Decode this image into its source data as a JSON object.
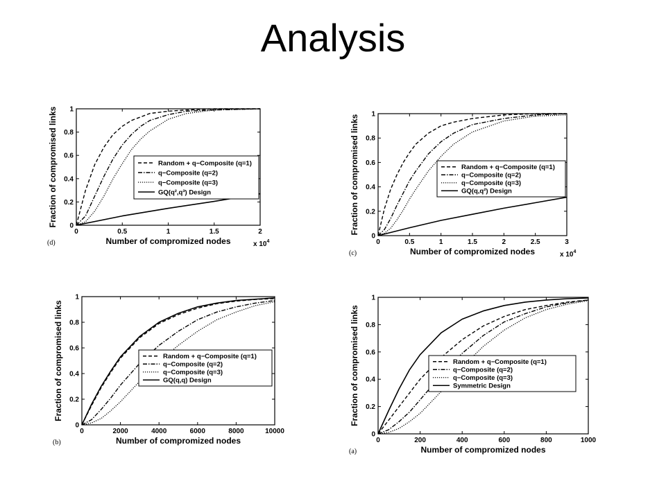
{
  "slide": {
    "title": "Analysis"
  },
  "chart_data": [
    {
      "id": "d",
      "type": "line",
      "panel_label": "(d)",
      "xlabel": "Number of compromized nodes",
      "ylabel": "Fraction of compromised links",
      "x_multiplier": "x 10",
      "x_multiplier_exp": "4",
      "xlim": [
        0,
        2
      ],
      "ylim": [
        0,
        1
      ],
      "xticks": [
        0,
        0.5,
        1,
        1.5,
        2
      ],
      "xtick_labels": [
        "0",
        "0.5",
        "1",
        "1.5",
        "2"
      ],
      "yticks": [
        0,
        0.2,
        0.4,
        0.6,
        0.8,
        1
      ],
      "ytick_labels": [
        "0",
        "0.2",
        "0.4",
        "0.6",
        "0.8",
        "1"
      ],
      "legend_position": "center-right",
      "series": [
        {
          "name": "Random + q−Composite (q=1)",
          "style": "dashed",
          "x": [
            0,
            0.1,
            0.2,
            0.3,
            0.4,
            0.5,
            0.6,
            0.8,
            1.0,
            1.2,
            1.5,
            2.0
          ],
          "y": [
            0,
            0.3,
            0.52,
            0.67,
            0.78,
            0.85,
            0.9,
            0.96,
            0.98,
            0.99,
            1.0,
            1.0
          ]
        },
        {
          "name": "q−Composite (q=2)",
          "style": "dashdot",
          "x": [
            0,
            0.1,
            0.2,
            0.3,
            0.4,
            0.5,
            0.6,
            0.7,
            0.8,
            1.0,
            1.2,
            1.5,
            2.0
          ],
          "y": [
            0,
            0.08,
            0.25,
            0.42,
            0.57,
            0.69,
            0.78,
            0.85,
            0.9,
            0.95,
            0.98,
            0.99,
            1.0
          ]
        },
        {
          "name": "q−Composite (q=3)",
          "style": "dotted",
          "x": [
            0,
            0.1,
            0.2,
            0.3,
            0.4,
            0.5,
            0.6,
            0.7,
            0.8,
            1.0,
            1.2,
            1.5,
            2.0
          ],
          "y": [
            0,
            0.03,
            0.12,
            0.25,
            0.4,
            0.53,
            0.65,
            0.74,
            0.81,
            0.91,
            0.96,
            0.99,
            1.0
          ]
        },
        {
          "name": "GQ(q²,q³) Design",
          "style": "solid",
          "x": [
            0,
            0.5,
            1.0,
            1.5,
            2.0
          ],
          "y": [
            0,
            0.08,
            0.145,
            0.205,
            0.27
          ]
        }
      ]
    },
    {
      "id": "c",
      "type": "line",
      "panel_label": "(c)",
      "xlabel": "Number of compromized nodes",
      "ylabel": "Fraction of compromised links",
      "x_multiplier": "x 10",
      "x_multiplier_exp": "4",
      "xlim": [
        0,
        3
      ],
      "ylim": [
        0,
        1
      ],
      "xticks": [
        0,
        0.5,
        1,
        1.5,
        2,
        2.5,
        3
      ],
      "xtick_labels": [
        "0",
        "0.5",
        "1",
        "1.5",
        "2",
        "2.5",
        "3"
      ],
      "yticks": [
        0,
        0.2,
        0.4,
        0.6,
        0.8,
        1
      ],
      "ytick_labels": [
        "0",
        "0.2",
        "0.4",
        "0.6",
        "0.8",
        "1"
      ],
      "legend_position": "center-right",
      "series": [
        {
          "name": "Random + q−Composite (q=1)",
          "style": "dashed",
          "x": [
            0,
            0.1,
            0.2,
            0.3,
            0.4,
            0.5,
            0.6,
            0.8,
            1.0,
            1.2,
            1.5,
            2.0,
            2.5,
            3.0
          ],
          "y": [
            0,
            0.22,
            0.38,
            0.5,
            0.6,
            0.68,
            0.75,
            0.84,
            0.9,
            0.93,
            0.96,
            0.99,
            1.0,
            1.0
          ]
        },
        {
          "name": "q−Composite (q=2)",
          "style": "dashdot",
          "x": [
            0,
            0.1,
            0.2,
            0.3,
            0.4,
            0.5,
            0.6,
            0.8,
            1.0,
            1.2,
            1.5,
            2.0,
            2.5,
            3.0
          ],
          "y": [
            0,
            0.05,
            0.14,
            0.25,
            0.35,
            0.45,
            0.53,
            0.67,
            0.77,
            0.84,
            0.91,
            0.96,
            0.99,
            1.0
          ]
        },
        {
          "name": "q−Composite (q=3)",
          "style": "dotted",
          "x": [
            0,
            0.1,
            0.2,
            0.3,
            0.4,
            0.5,
            0.6,
            0.8,
            1.0,
            1.2,
            1.5,
            2.0,
            2.5,
            3.0
          ],
          "y": [
            0,
            0.02,
            0.06,
            0.13,
            0.21,
            0.3,
            0.38,
            0.53,
            0.65,
            0.75,
            0.85,
            0.94,
            0.98,
            0.99
          ]
        },
        {
          "name": "GQ(q,q²) Design",
          "style": "solid",
          "x": [
            0,
            0.5,
            1.0,
            1.5,
            2.0,
            2.5,
            3.0
          ],
          "y": [
            0,
            0.065,
            0.125,
            0.175,
            0.225,
            0.27,
            0.315
          ]
        }
      ]
    },
    {
      "id": "b",
      "type": "line",
      "panel_label": "(b)",
      "xlabel": "Number of compromized nodes",
      "ylabel": "Fraction of compromised links",
      "xlim": [
        0,
        10000
      ],
      "ylim": [
        0,
        1
      ],
      "xticks": [
        0,
        2000,
        4000,
        6000,
        8000,
        10000
      ],
      "xtick_labels": [
        "0",
        "2000",
        "4000",
        "6000",
        "8000",
        "10000"
      ],
      "yticks": [
        0,
        0.2,
        0.4,
        0.6,
        0.8,
        1
      ],
      "ytick_labels": [
        "0",
        "0.2",
        "0.4",
        "0.6",
        "0.8",
        "1"
      ],
      "legend_position": "center-right",
      "series": [
        {
          "name": "Random + q−Composite (q=1)",
          "style": "dashed",
          "x": [
            0,
            500,
            1000,
            1500,
            2000,
            3000,
            4000,
            5000,
            6000,
            7000,
            8000,
            9000,
            10000
          ],
          "y": [
            0,
            0.15,
            0.29,
            0.41,
            0.52,
            0.68,
            0.79,
            0.86,
            0.91,
            0.945,
            0.965,
            0.978,
            0.985
          ]
        },
        {
          "name": "q−Composite (q=2)",
          "style": "dashdot",
          "x": [
            0,
            500,
            1000,
            1500,
            2000,
            3000,
            4000,
            5000,
            6000,
            7000,
            8000,
            9000,
            10000
          ],
          "y": [
            0,
            0.04,
            0.12,
            0.21,
            0.31,
            0.48,
            0.62,
            0.73,
            0.82,
            0.88,
            0.92,
            0.95,
            0.97
          ]
        },
        {
          "name": "q−Composite (q=3)",
          "style": "dotted",
          "x": [
            0,
            500,
            1000,
            1500,
            2000,
            3000,
            4000,
            5000,
            6000,
            7000,
            8000,
            9000,
            10000
          ],
          "y": [
            0,
            0.015,
            0.05,
            0.11,
            0.18,
            0.34,
            0.49,
            0.62,
            0.73,
            0.82,
            0.88,
            0.93,
            0.96
          ]
        },
        {
          "name": "GQ(q,q) Design",
          "style": "solid",
          "x": [
            0,
            500,
            1000,
            1500,
            2000,
            3000,
            4000,
            5000,
            6000,
            7000,
            8000,
            9000,
            10000
          ],
          "y": [
            0,
            0.16,
            0.3,
            0.42,
            0.53,
            0.69,
            0.8,
            0.87,
            0.92,
            0.95,
            0.97,
            0.98,
            0.99
          ]
        }
      ]
    },
    {
      "id": "a",
      "type": "line",
      "panel_label": "(a)",
      "xlabel": "Number of compromized nodes",
      "ylabel": "Fraction of compromised links",
      "xlim": [
        0,
        1000
      ],
      "ylim": [
        0,
        1
      ],
      "xticks": [
        0,
        200,
        400,
        600,
        800,
        1000
      ],
      "xtick_labels": [
        "0",
        "200",
        "400",
        "600",
        "800",
        "1000"
      ],
      "yticks": [
        0,
        0.2,
        0.4,
        0.6,
        0.8,
        1
      ],
      "ytick_labels": [
        "0",
        "0.2",
        "0.4",
        "0.6",
        "0.8",
        "1"
      ],
      "legend_position": "center-right",
      "series": [
        {
          "name": "Random + q−Composite (q=1)",
          "style": "dashed",
          "x": [
            0,
            50,
            100,
            150,
            200,
            300,
            400,
            500,
            600,
            700,
            800,
            900,
            1000
          ],
          "y": [
            0,
            0.1,
            0.2,
            0.3,
            0.4,
            0.56,
            0.69,
            0.79,
            0.86,
            0.91,
            0.94,
            0.965,
            0.98
          ]
        },
        {
          "name": "q−Composite (q=2)",
          "style": "dashdot",
          "x": [
            0,
            50,
            100,
            150,
            200,
            300,
            400,
            500,
            600,
            700,
            800,
            900,
            1000
          ],
          "y": [
            0,
            0.03,
            0.09,
            0.16,
            0.25,
            0.43,
            0.59,
            0.72,
            0.82,
            0.88,
            0.93,
            0.96,
            0.98
          ]
        },
        {
          "name": "q−Composite (q=3)",
          "style": "dotted",
          "x": [
            0,
            50,
            100,
            150,
            200,
            250,
            300,
            400,
            500,
            600,
            700,
            800,
            900,
            1000
          ],
          "y": [
            0,
            0.01,
            0.04,
            0.09,
            0.15,
            0.23,
            0.31,
            0.49,
            0.64,
            0.76,
            0.85,
            0.91,
            0.95,
            0.975
          ]
        },
        {
          "name": "Symmetric Design",
          "style": "solid",
          "x": [
            0,
            50,
            100,
            150,
            200,
            300,
            400,
            500,
            600,
            700,
            800,
            900,
            1000
          ],
          "y": [
            0,
            0.17,
            0.33,
            0.47,
            0.58,
            0.74,
            0.84,
            0.9,
            0.94,
            0.965,
            0.98,
            0.99,
            0.995
          ]
        }
      ]
    }
  ]
}
